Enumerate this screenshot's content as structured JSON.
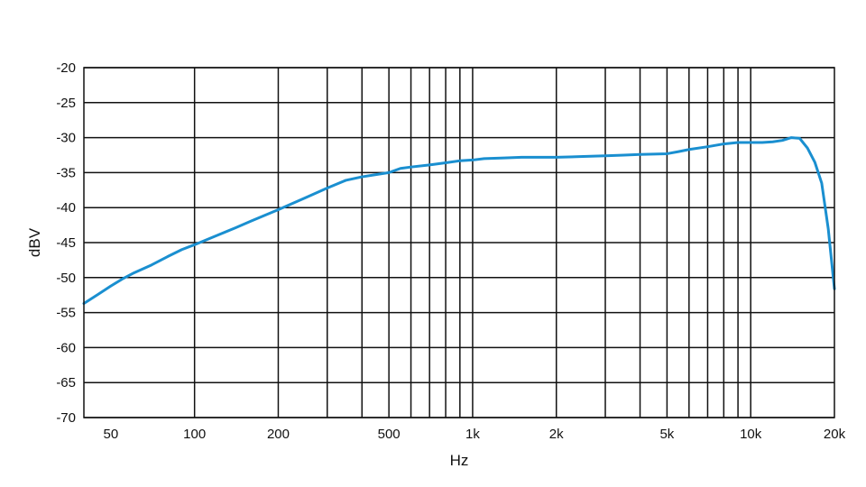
{
  "chart_data": {
    "type": "line",
    "title": "",
    "xlabel": "Hz",
    "ylabel": "dBV",
    "x_scale": "log",
    "xlim": [
      40,
      20000
    ],
    "ylim": [
      -70,
      -20
    ],
    "grid": true,
    "x_major_ticks": [
      {
        "value": 50,
        "label": "50"
      },
      {
        "value": 100,
        "label": "100"
      },
      {
        "value": 200,
        "label": "200"
      },
      {
        "value": 500,
        "label": "500"
      },
      {
        "value": 1000,
        "label": "1k"
      },
      {
        "value": 2000,
        "label": "2k"
      },
      {
        "value": 5000,
        "label": "5k"
      },
      {
        "value": 10000,
        "label": "10k"
      },
      {
        "value": 20000,
        "label": "20k"
      }
    ],
    "x_grid_lines": [
      100,
      200,
      300,
      400,
      500,
      600,
      700,
      800,
      900,
      1000,
      2000,
      3000,
      4000,
      5000,
      6000,
      7000,
      8000,
      9000,
      10000
    ],
    "y_ticks": [
      {
        "value": -20,
        "label": "-20"
      },
      {
        "value": -25,
        "label": "-25"
      },
      {
        "value": -30,
        "label": "-30"
      },
      {
        "value": -35,
        "label": "-35"
      },
      {
        "value": -40,
        "label": "-40"
      },
      {
        "value": -45,
        "label": "-45"
      },
      {
        "value": -50,
        "label": "-50"
      },
      {
        "value": -55,
        "label": "-55"
      },
      {
        "value": -60,
        "label": "-60"
      },
      {
        "value": -65,
        "label": "-65"
      },
      {
        "value": -70,
        "label": "-70"
      }
    ],
    "series": [
      {
        "color": "#1a8fd0",
        "x": [
          40,
          45,
          50,
          55,
          60,
          70,
          80,
          90,
          100,
          120,
          140,
          160,
          200,
          250,
          300,
          350,
          400,
          500,
          550,
          600,
          700,
          800,
          900,
          1000,
          1100,
          1300,
          1500,
          2000,
          2500,
          3000,
          3500,
          4000,
          5000,
          5500,
          6000,
          7000,
          8000,
          9000,
          10000,
          11000,
          12000,
          13000,
          14000,
          15000,
          16000,
          17000,
          18000,
          19000,
          20000
        ],
        "y": [
          -53.7,
          -52.4,
          -51.2,
          -50.2,
          -49.4,
          -48.2,
          -47.0,
          -46.0,
          -45.3,
          -44.0,
          -42.9,
          -41.9,
          -40.3,
          -38.6,
          -37.2,
          -36.1,
          -35.6,
          -35.0,
          -34.4,
          -34.2,
          -33.9,
          -33.6,
          -33.3,
          -33.2,
          -33.0,
          -32.9,
          -32.8,
          -32.8,
          -32.7,
          -32.6,
          -32.5,
          -32.4,
          -32.3,
          -32.0,
          -31.7,
          -31.3,
          -30.9,
          -30.7,
          -30.7,
          -30.7,
          -30.6,
          -30.4,
          -30.0,
          -30.1,
          -31.5,
          -33.5,
          -36.5,
          -43.0,
          -51.6
        ]
      }
    ]
  }
}
